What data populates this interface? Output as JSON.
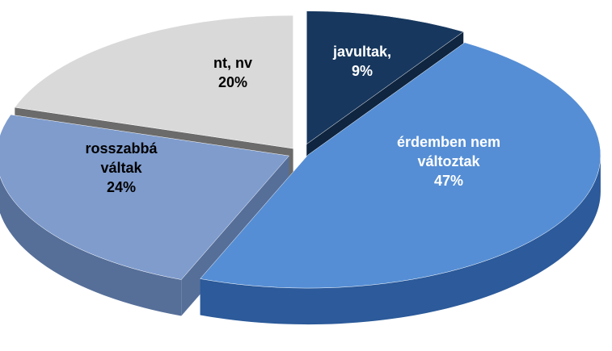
{
  "chart_data": {
    "type": "pie3d",
    "categories": [
      "javultak,",
      "érdemben nem változtak",
      "rosszabbá váltak",
      "nt, nv"
    ],
    "values": [
      9,
      47,
      24,
      20
    ],
    "value_labels": [
      "9%",
      "47%",
      "24%",
      "20%"
    ],
    "colors": [
      "#17375e",
      "#558ed5",
      "#7f9ccd",
      "#d9d9d9"
    ]
  }
}
